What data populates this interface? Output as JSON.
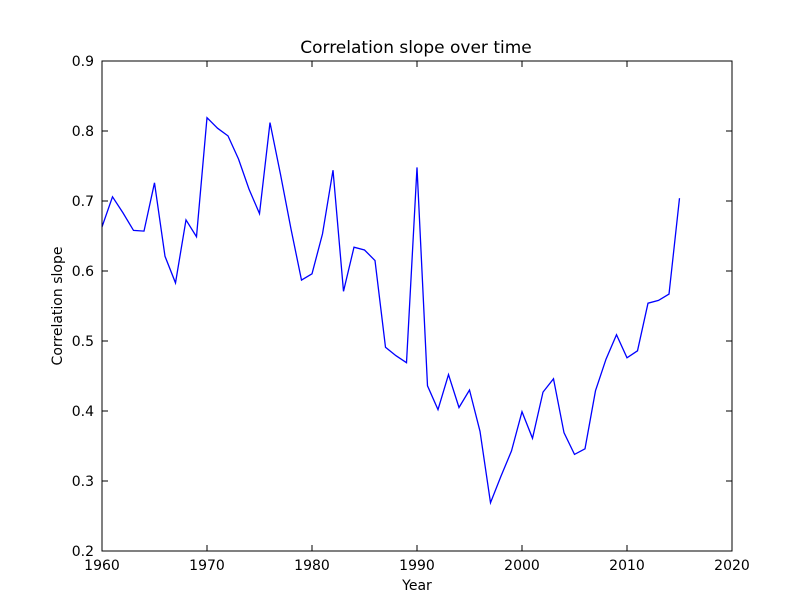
{
  "chart_data": {
    "type": "line",
    "title": "Correlation slope over time",
    "xlabel": "Year",
    "ylabel": "Correlation slope",
    "xlim": [
      1960,
      2020
    ],
    "ylim": [
      0.2,
      0.9
    ],
    "xticks": [
      1960,
      1970,
      1980,
      1990,
      2000,
      2010,
      2020
    ],
    "yticks": [
      0.2,
      0.3,
      0.4,
      0.5,
      0.6,
      0.7,
      0.8,
      0.9
    ],
    "xtick_labels": [
      "1960",
      "1970",
      "1980",
      "1990",
      "2000",
      "2010",
      "2020"
    ],
    "ytick_labels": [
      "0.2",
      "0.3",
      "0.4",
      "0.5",
      "0.6",
      "0.7",
      "0.8",
      "0.9"
    ],
    "grid": false,
    "legend": "none",
    "line_color": "#0000ff",
    "series": [
      {
        "x": [
          1960,
          1961,
          1962,
          1963,
          1964,
          1965,
          1966,
          1967,
          1968,
          1969,
          1970,
          1971,
          1972,
          1973,
          1974,
          1975,
          1976,
          1977,
          1978,
          1979,
          1980,
          1981,
          1982,
          1983,
          1984,
          1985,
          1986,
          1987,
          1988,
          1989,
          1990,
          1991,
          1992,
          1993,
          1994,
          1995,
          1996,
          1997,
          1998,
          1999,
          2000,
          2001,
          2002,
          2003,
          2004,
          2005,
          2006,
          2007,
          2008,
          2009,
          2010,
          2011,
          2012,
          2013,
          2014,
          2015
        ],
        "values": [
          0.663,
          0.706,
          0.683,
          0.658,
          0.657,
          0.726,
          0.621,
          0.583,
          0.673,
          0.649,
          0.819,
          0.804,
          0.793,
          0.76,
          0.717,
          0.682,
          0.812,
          0.738,
          0.66,
          0.587,
          0.596,
          0.653,
          0.744,
          0.571,
          0.634,
          0.63,
          0.615,
          0.491,
          0.479,
          0.469,
          0.748,
          0.436,
          0.402,
          0.452,
          0.405,
          0.43,
          0.371,
          0.269,
          0.307,
          0.343,
          0.399,
          0.361,
          0.427,
          0.446,
          0.369,
          0.338,
          0.346,
          0.429,
          0.474,
          0.509,
          0.476,
          0.486,
          0.554,
          0.558,
          0.567,
          0.704
        ]
      }
    ]
  }
}
